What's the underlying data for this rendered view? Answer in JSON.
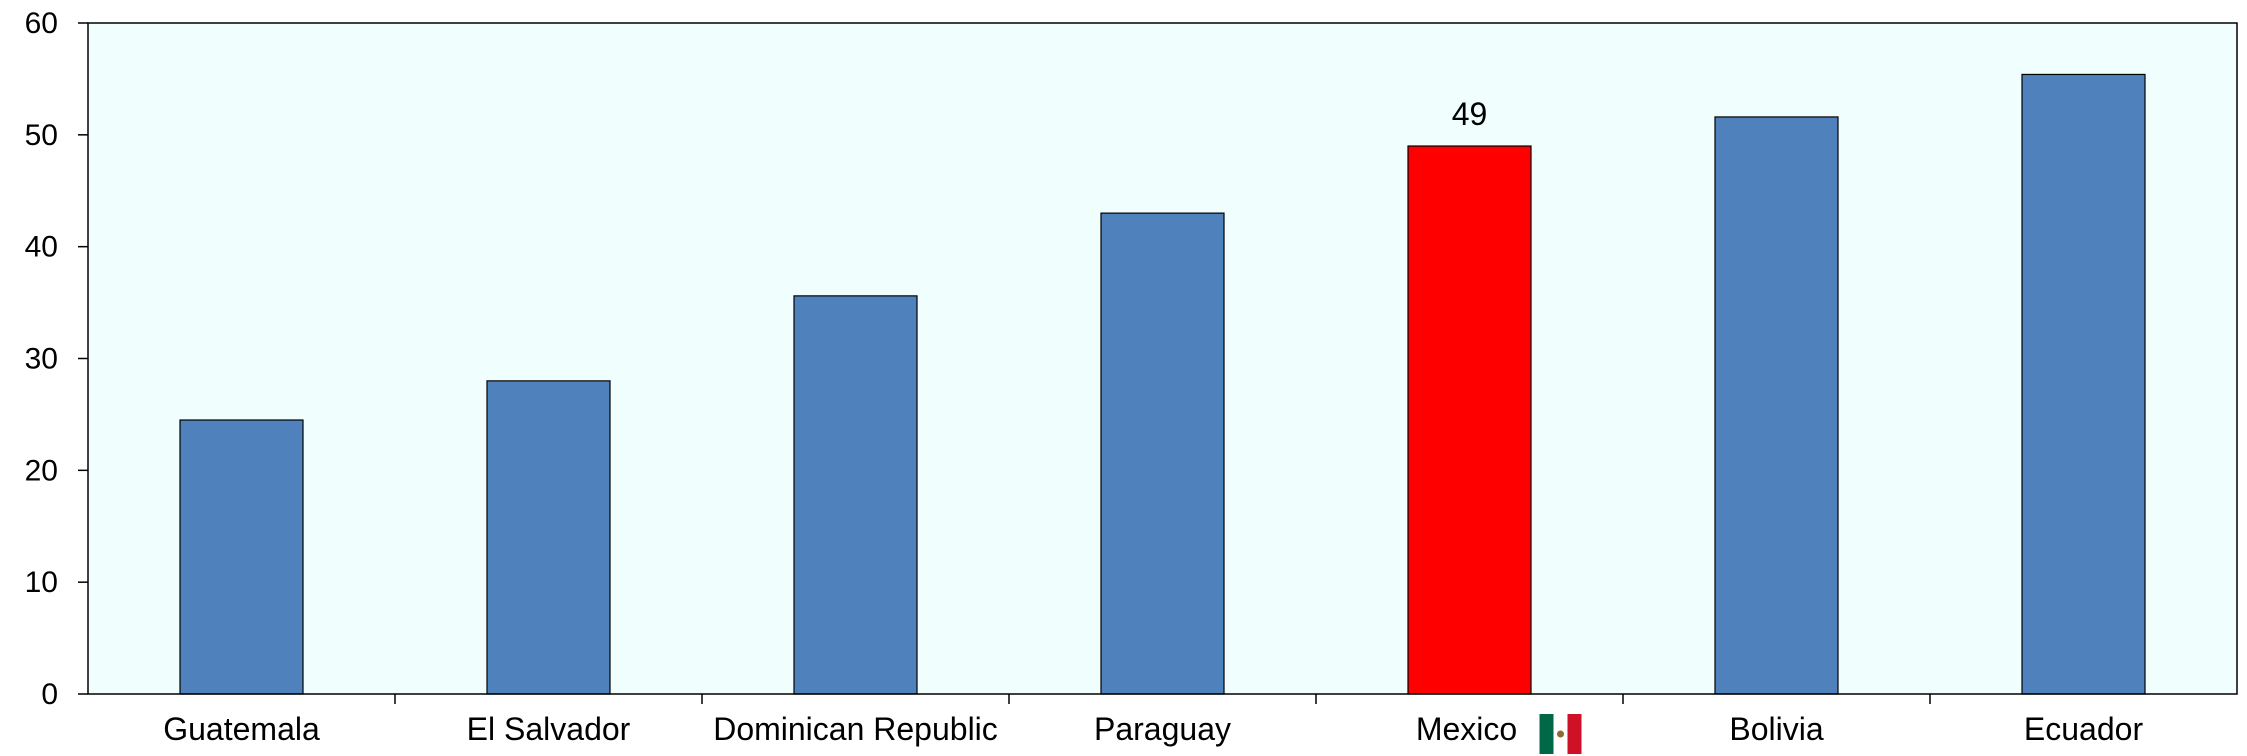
{
  "chart_data": {
    "type": "bar",
    "title": "",
    "xlabel": "",
    "ylabel": "",
    "categories": [
      "Guatemala",
      "El Salvador",
      "Dominican Republic",
      "Paraguay",
      "Mexico",
      "Bolivia",
      "Ecuador"
    ],
    "values": [
      24.5,
      28.0,
      35.6,
      43.0,
      49.0,
      51.6,
      55.4
    ],
    "ylim": [
      0,
      60
    ],
    "yticks": [
      "0",
      "10",
      "20",
      "30",
      "40",
      "50",
      "60"
    ],
    "grid": false,
    "highlight": {
      "category": "Mexico",
      "value_label": "49",
      "flag_icon": "mexico-flag-icon"
    },
    "colors": {
      "bar": "#4f81bd",
      "highlight_bar": "#ff0000",
      "plot_background": "#f0fffe",
      "axis": "#000000",
      "flag_green": "#006847",
      "flag_white": "#ffffff",
      "flag_red": "#ce1126"
    }
  }
}
